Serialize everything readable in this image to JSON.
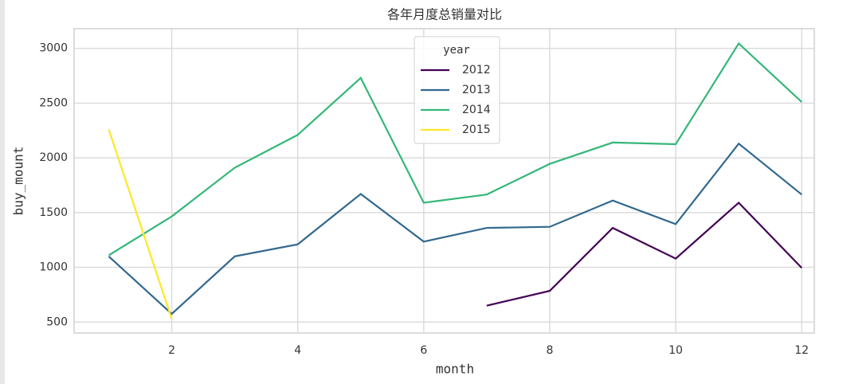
{
  "chart_data": {
    "type": "line",
    "title": "各年月度总销量对比",
    "x_label": "month",
    "y_label": "buy_mount",
    "x": [
      1,
      2,
      3,
      4,
      5,
      6,
      7,
      8,
      9,
      10,
      11,
      12
    ],
    "series": [
      {
        "name": "2012",
        "color": "#440154",
        "values": [
          null,
          null,
          null,
          null,
          null,
          null,
          650,
          785,
          1360,
          1080,
          1590,
          995
        ]
      },
      {
        "name": "2013",
        "color": "#31688e",
        "values": [
          1100,
          575,
          1100,
          1210,
          1670,
          1235,
          1360,
          1370,
          1610,
          1395,
          2130,
          1665
        ]
      },
      {
        "name": "2014",
        "color": "#35b779",
        "values": [
          1110,
          1465,
          1910,
          2210,
          2730,
          1590,
          1665,
          1945,
          2140,
          2125,
          3045,
          2510
        ]
      },
      {
        "name": "2015",
        "color": "#fde725",
        "values": [
          2260,
          530,
          null,
          null,
          null,
          null,
          null,
          null,
          null,
          null,
          null,
          null
        ]
      }
    ],
    "legend_title": "year",
    "xlim": [
      0.45,
      12.2
    ],
    "ylim": [
      400,
      3180
    ],
    "xticks": [
      2,
      4,
      6,
      8,
      10,
      12
    ],
    "yticks": [
      500,
      1000,
      1500,
      2000,
      2500,
      3000
    ],
    "grid": true
  }
}
